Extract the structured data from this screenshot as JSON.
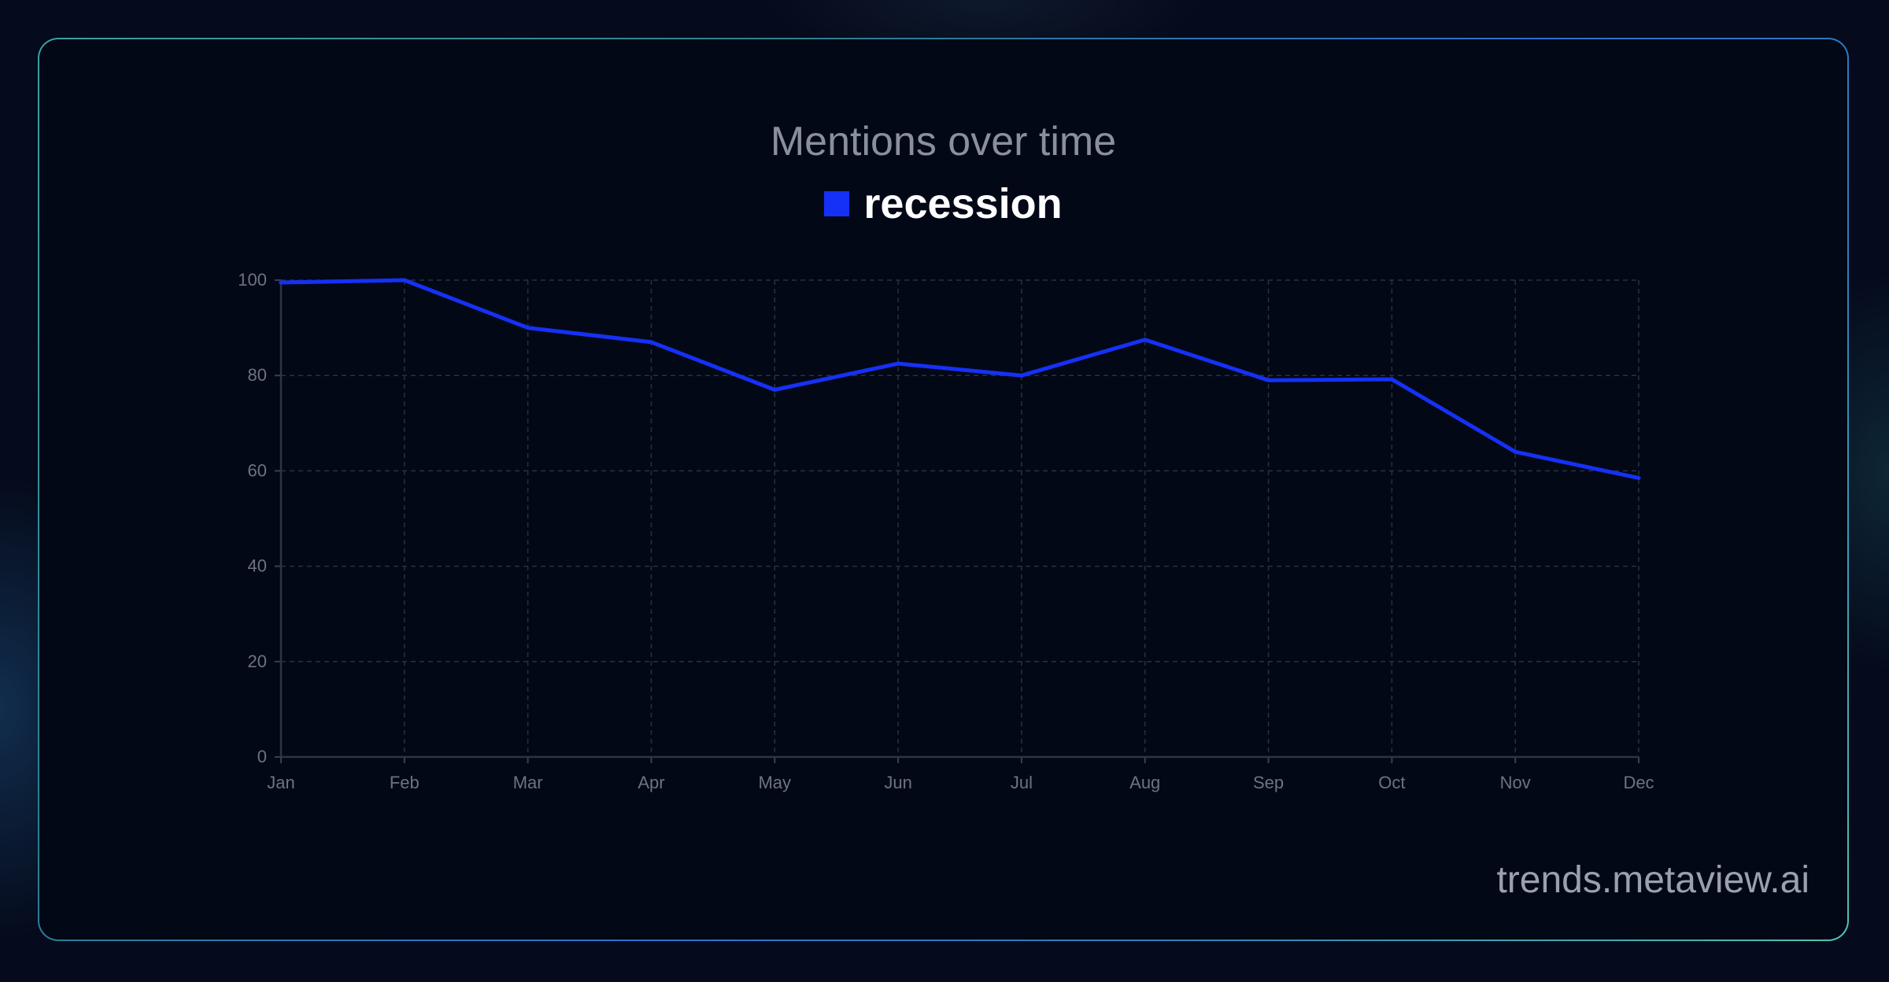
{
  "chart_data": {
    "type": "line",
    "title": "Mentions over time",
    "categories": [
      "Jan",
      "Feb",
      "Mar",
      "Apr",
      "May",
      "Jun",
      "Jul",
      "Aug",
      "Sep",
      "Oct",
      "Nov",
      "Dec"
    ],
    "series": [
      {
        "name": "recession",
        "values": [
          99.5,
          100,
          90,
          87,
          77,
          82.5,
          80,
          87.5,
          79,
          79.2,
          64,
          58.5
        ],
        "color": "#1531f5"
      }
    ],
    "ylim": [
      0,
      100
    ],
    "yticks": [
      0,
      20,
      40,
      60,
      80,
      100
    ],
    "xlabel": "",
    "ylabel": "",
    "grid": true,
    "legend": "top-center"
  },
  "watermark": "trends.metaview.ai"
}
